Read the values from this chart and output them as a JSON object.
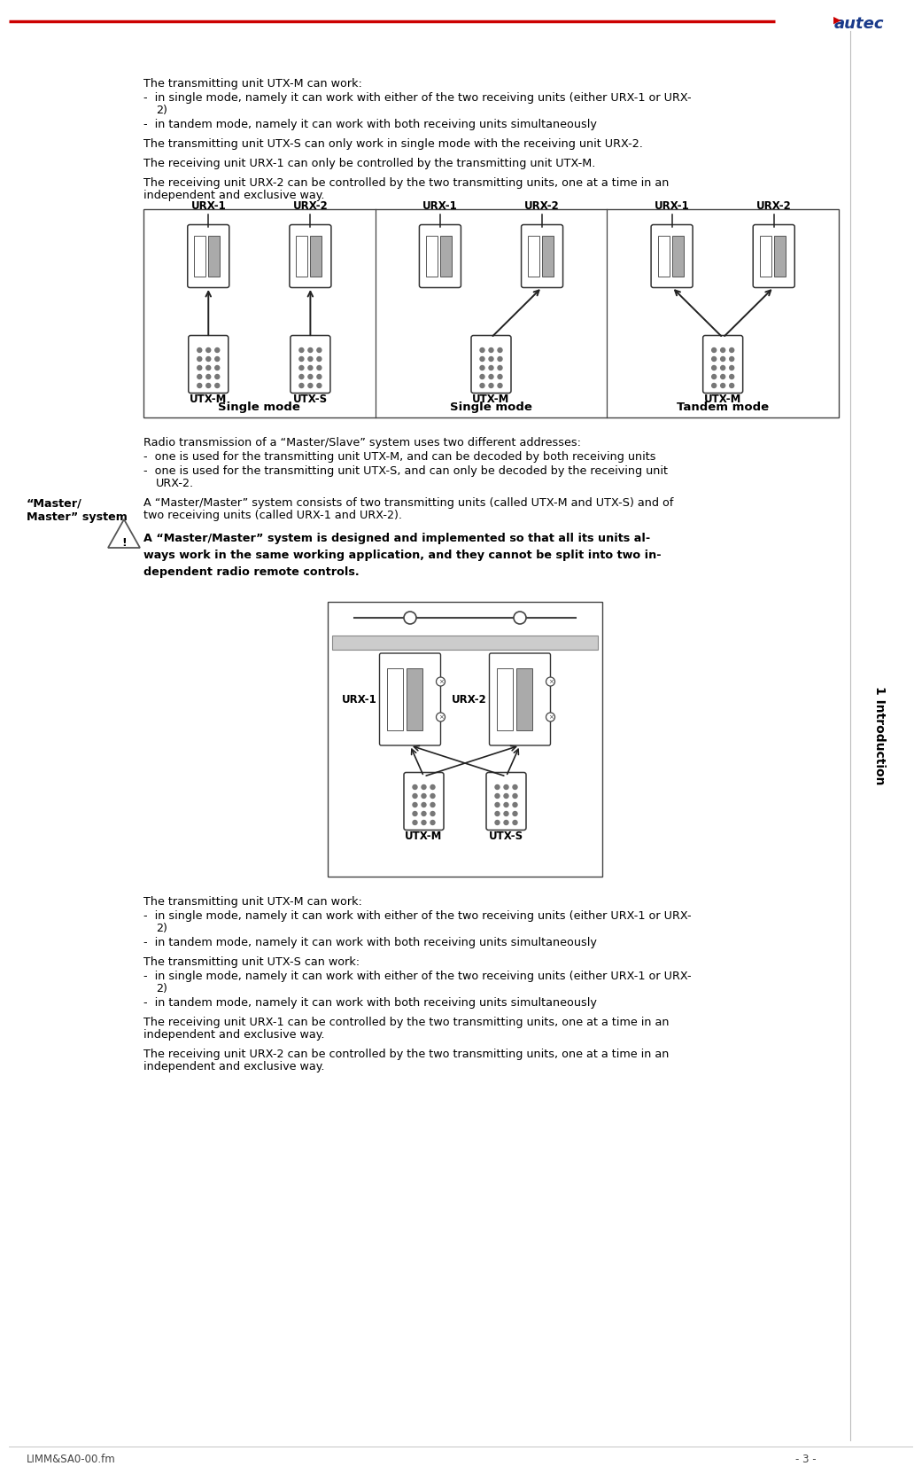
{
  "bg_color": "#ffffff",
  "text_color": "#000000",
  "header_line_color": "#cc0000",
  "sidebar_text": "1 Introduction",
  "footer_left": "LIMM&SA0-00.fm",
  "footer_right": "- 3 -",
  "diagram1_caption": [
    "Single mode",
    "Single mode",
    "Tandem mode"
  ]
}
